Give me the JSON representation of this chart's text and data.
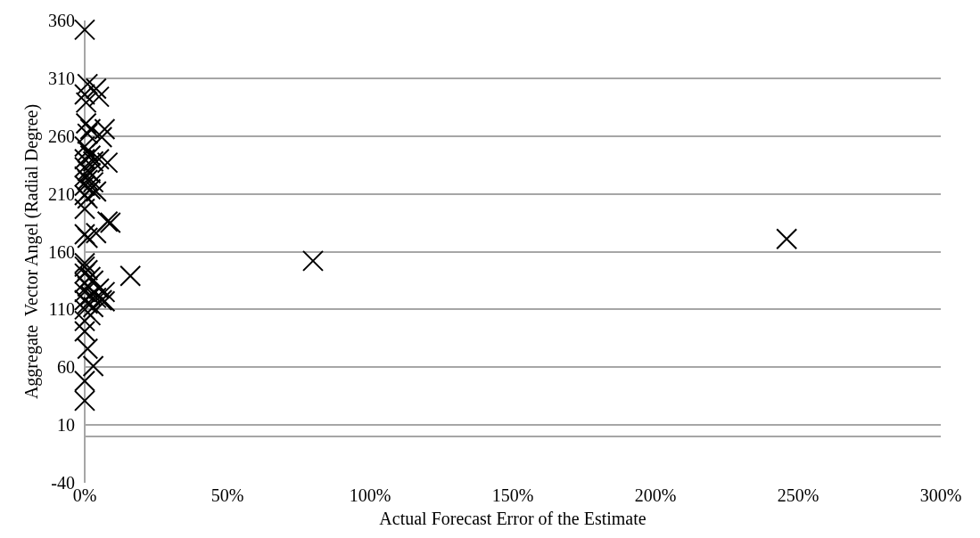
{
  "chart_data": {
    "type": "scatter",
    "xlabel": "Actual Forecast Error of the Estimate",
    "ylabel": "Aggregate  Vector Angel (Radial Degree)",
    "x": [
      0,
      1,
      4,
      5,
      0,
      0.5,
      0.5,
      2,
      7,
      6,
      1,
      0,
      1,
      2,
      0,
      3,
      5,
      8,
      0,
      1,
      2,
      0,
      1,
      3,
      0,
      2,
      4,
      0,
      1,
      0,
      8,
      9,
      4,
      0,
      1,
      0,
      16,
      80,
      246,
      0,
      1,
      0,
      2,
      3,
      0,
      1,
      5,
      7,
      0,
      2,
      4,
      6,
      0,
      1,
      3,
      0,
      7,
      2,
      0,
      0,
      1,
      3,
      0,
      0
    ],
    "values": [
      352,
      305,
      301,
      294,
      296,
      289,
      271,
      266,
      266,
      259,
      262,
      251,
      247,
      243,
      240,
      238,
      240,
      237,
      233,
      230,
      228,
      225,
      222,
      220,
      217,
      214,
      212,
      209,
      206,
      197,
      186,
      185,
      176,
      175,
      172,
      150,
      139,
      152,
      171,
      147,
      144,
      141,
      138,
      135,
      133,
      130,
      128,
      125,
      125,
      122,
      120,
      118,
      118,
      115,
      112,
      110,
      117,
      105,
      100,
      91,
      76,
      61,
      48,
      31
    ],
    "color": "#000000",
    "marker": "cross",
    "xlim": [
      0,
      300
    ],
    "xticks": [
      {
        "value": 0,
        "label": "0%"
      },
      {
        "value": 50,
        "label": "50%"
      },
      {
        "value": 100,
        "label": "100%"
      },
      {
        "value": 150,
        "label": "150%"
      },
      {
        "value": 200,
        "label": "200%"
      },
      {
        "value": 250,
        "label": "250%"
      },
      {
        "value": 300,
        "label": "300%"
      }
    ],
    "ylim": [
      -40,
      360
    ],
    "yticks": [
      -40,
      10,
      60,
      110,
      160,
      210,
      260,
      310,
      360
    ],
    "grid": "y"
  }
}
